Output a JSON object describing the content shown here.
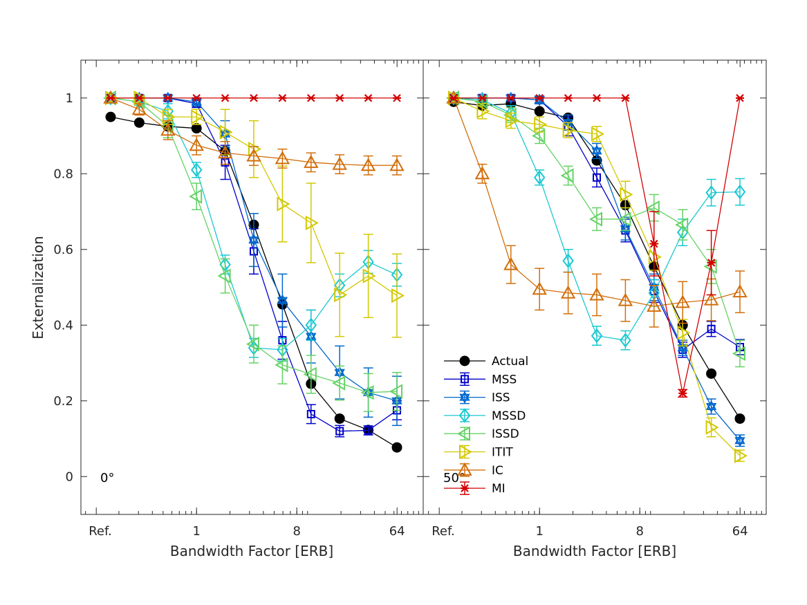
{
  "chart_data": {
    "type": "line",
    "ylabel": "Externalization",
    "ylim": [
      -0.1,
      1.1
    ],
    "yticks": [
      0,
      0.2,
      0.4,
      0.6,
      0.8,
      1
    ],
    "ytick_labels": [
      "0",
      "0.2",
      "0.4",
      "0.6",
      "0.8",
      "1"
    ],
    "xlabel": "Bandwidth Factor [ERB]",
    "xscale": "log2",
    "xtick_labels": [
      "Ref.",
      "1",
      "8",
      "64"
    ],
    "x_categories": [
      "Ref.",
      "0.31",
      "0.55",
      "1",
      "1.8",
      "3.3",
      "6",
      "11",
      "20",
      "36",
      "64"
    ],
    "legend": {
      "placement": "lower-left of right panel",
      "entries": [
        "Actual",
        "MSS",
        "ISS",
        "MSSD",
        "ISSD",
        "ITIT",
        "IC",
        "MI"
      ]
    },
    "series_styles": [
      {
        "name": "Actual",
        "color": "#000000",
        "marker": "filled-circle"
      },
      {
        "name": "MSS",
        "color": "#0000c8",
        "marker": "square"
      },
      {
        "name": "ISS",
        "color": "#0066cc",
        "marker": "hexagram"
      },
      {
        "name": "MSSD",
        "color": "#19c8d2",
        "marker": "diamond"
      },
      {
        "name": "ISSD",
        "color": "#64d264",
        "marker": "triangle-left"
      },
      {
        "name": "ITIT",
        "color": "#d2c800",
        "marker": "triangle-right"
      },
      {
        "name": "IC",
        "color": "#d26e0a",
        "marker": "triangle-up"
      },
      {
        "name": "MI",
        "color": "#d20000",
        "marker": "x-star"
      }
    ],
    "panels": [
      {
        "label": "0°",
        "series": [
          {
            "name": "Actual",
            "values": [
              0.95,
              0.935,
              0.925,
              0.92,
              0.86,
              0.665,
              0.455,
              0.245,
              0.153,
              0.123,
              0.077
            ],
            "err": [
              0,
              0,
              0,
              0,
              0,
              0,
              0,
              0,
              0,
              0,
              0
            ]
          },
          {
            "name": "MSS",
            "values": [
              1.0,
              1.0,
              1.0,
              0.985,
              0.83,
              0.595,
              0.36,
              0.165,
              0.12,
              0.122,
              0.175
            ],
            "err": [
              0,
              0,
              0,
              0.01,
              0.045,
              0.06,
              0.05,
              0.025,
              0.015,
              0.012,
              0.025
            ]
          },
          {
            "name": "ISS",
            "values": [
              1.0,
              1.0,
              1.0,
              0.99,
              0.905,
              0.625,
              0.465,
              0.37,
              0.275,
              0.222,
              0.2
            ],
            "err": [
              0,
              0,
              0,
              0.01,
              0.035,
              0.07,
              0.07,
              0.07,
              0.07,
              0.065,
              0.065
            ]
          },
          {
            "name": "MSSD",
            "values": [
              1.0,
              0.99,
              0.965,
              0.81,
              0.56,
              0.34,
              0.335,
              0.4,
              0.505,
              0.567,
              0.533
            ],
            "err": [
              0,
              0.01,
              0.02,
              0.02,
              0.025,
              0.025,
              0.03,
              0.04,
              0.03,
              0.03,
              0.03
            ]
          },
          {
            "name": "ISSD",
            "values": [
              1.0,
              0.99,
              0.925,
              0.74,
              0.53,
              0.35,
              0.295,
              0.27,
              0.247,
              0.222,
              0.225
            ],
            "err": [
              0,
              0.01,
              0.03,
              0.035,
              0.045,
              0.05,
              0.05,
              0.05,
              0.045,
              0.05,
              0.05
            ]
          },
          {
            "name": "ITIT",
            "values": [
              1.0,
              1.0,
              0.95,
              0.95,
              0.91,
              0.865,
              0.72,
              0.67,
              0.48,
              0.53,
              0.478
            ],
            "err": [
              0,
              0,
              0.02,
              0.02,
              0.06,
              0.075,
              0.1,
              0.105,
              0.11,
              0.11,
              0.11
            ]
          },
          {
            "name": "IC",
            "values": [
              1.0,
              0.97,
              0.915,
              0.875,
              0.855,
              0.847,
              0.84,
              0.83,
              0.825,
              0.822,
              0.822
            ],
            "err": [
              0,
              0.015,
              0.025,
              0.025,
              0.03,
              0.025,
              0.025,
              0.025,
              0.025,
              0.025,
              0.025
            ]
          },
          {
            "name": "MI",
            "values": [
              1,
              1,
              1,
              1,
              1,
              1,
              1,
              1,
              1,
              1,
              1
            ],
            "err": [
              0,
              0,
              0,
              0,
              0,
              0,
              0,
              0,
              0,
              0,
              0
            ]
          }
        ]
      },
      {
        "label": "50°",
        "series": [
          {
            "name": "Actual",
            "values": [
              0.99,
              0.98,
              0.985,
              0.965,
              0.948,
              0.835,
              0.717,
              0.555,
              0.4,
              0.272,
              0.153
            ],
            "err": [
              0,
              0,
              0,
              0,
              0,
              0,
              0,
              0,
              0,
              0,
              0
            ]
          },
          {
            "name": "MSS",
            "values": [
              1.0,
              1.0,
              1.0,
              0.995,
              0.925,
              0.79,
              0.65,
              0.49,
              0.335,
              0.39,
              0.342
            ],
            "err": [
              0,
              0,
              0,
              0.01,
              0.025,
              0.025,
              0.03,
              0.03,
              0.02,
              0.02,
              0.02
            ]
          },
          {
            "name": "ISS",
            "values": [
              1.0,
              1.0,
              1.0,
              0.995,
              0.935,
              0.86,
              0.655,
              0.5,
              0.34,
              0.185,
              0.095
            ],
            "err": [
              0,
              0,
              0,
              0.01,
              0.02,
              0.02,
              0.03,
              0.035,
              0.02,
              0.02,
              0.015
            ]
          },
          {
            "name": "MSSD",
            "values": [
              1.0,
              0.995,
              0.96,
              0.79,
              0.57,
              0.372,
              0.36,
              0.485,
              0.645,
              0.75,
              0.752
            ],
            "err": [
              0,
              0.01,
              0.02,
              0.02,
              0.03,
              0.025,
              0.025,
              0.035,
              0.035,
              0.035,
              0.035
            ]
          },
          {
            "name": "ISSD",
            "values": [
              1.0,
              0.99,
              0.955,
              0.9,
              0.795,
              0.68,
              0.68,
              0.71,
              0.665,
              0.555,
              0.325
            ],
            "err": [
              0,
              0.01,
              0.02,
              0.02,
              0.025,
              0.03,
              0.03,
              0.035,
              0.04,
              0.045,
              0.035
            ]
          },
          {
            "name": "ITIT",
            "values": [
              1.0,
              0.965,
              0.94,
              0.93,
              0.915,
              0.905,
              0.745,
              0.58,
              0.38,
              0.13,
              0.055
            ],
            "err": [
              0,
              0.02,
              0.02,
              0.02,
              0.02,
              0.02,
              0.035,
              0.035,
              0.035,
              0.025,
              0.015
            ]
          },
          {
            "name": "IC",
            "values": [
              1.0,
              0.8,
              0.56,
              0.495,
              0.485,
              0.48,
              0.465,
              0.45,
              0.46,
              0.467,
              0.488
            ],
            "err": [
              0,
              0.025,
              0.05,
              0.055,
              0.055,
              0.055,
              0.055,
              0.055,
              0.055,
              0.055,
              0.055
            ]
          },
          {
            "name": "MI",
            "values": [
              1,
              1,
              1,
              1,
              1,
              1,
              1,
              0.615,
              0.22,
              0.565,
              1
            ],
            "err": [
              0,
              0,
              0,
              0,
              0,
              0,
              0,
              0.085,
              0.01,
              0.085,
              0
            ]
          }
        ]
      }
    ]
  }
}
